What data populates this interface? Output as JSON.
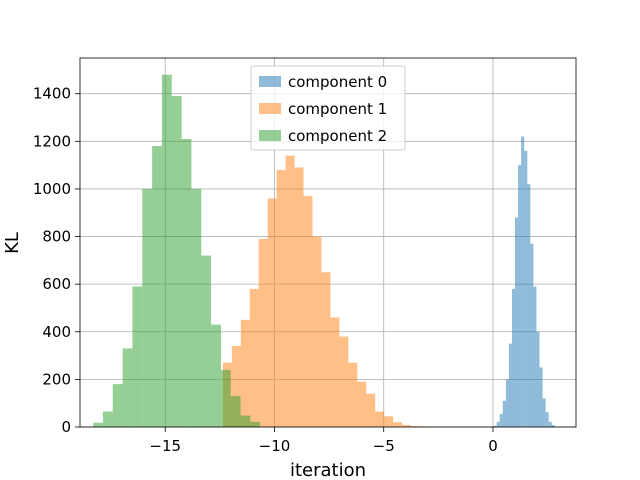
{
  "chart_data": {
    "type": "histogram",
    "xlabel": "iteration",
    "ylabel": "KL",
    "xlim": [
      -18.9,
      3.8
    ],
    "ylim": [
      0,
      1550
    ],
    "xticks": [
      -15,
      -10,
      -5,
      0
    ],
    "xtick_labels": [
      "−15",
      "−10",
      "−5",
      "0"
    ],
    "yticks": [
      0,
      200,
      400,
      600,
      800,
      1000,
      1200,
      1400
    ],
    "ytick_labels": [
      "0",
      "200",
      "400",
      "600",
      "800",
      "1000",
      "1200",
      "1400"
    ],
    "grid": true,
    "legend_position": "upper center",
    "series": [
      {
        "name": "component 0",
        "color": "#1f77b4",
        "opacity": 0.5,
        "bin_edges": [
          -0.11,
          0.03,
          0.17,
          0.31,
          0.45,
          0.59,
          0.73,
          0.87,
          1.01,
          1.15,
          1.29,
          1.43,
          1.57,
          1.71,
          1.85,
          1.99,
          2.13,
          2.27,
          2.41,
          2.55,
          2.69,
          2.83
        ],
        "counts": [
          2,
          5,
          22,
          55,
          110,
          200,
          350,
          580,
          880,
          1100,
          1220,
          1160,
          1020,
          770,
          590,
          400,
          250,
          120,
          62,
          22,
          8
        ]
      },
      {
        "name": "component 1",
        "color": "#ff7f0e",
        "opacity": 0.5,
        "bin_edges": [
          -12.36,
          -11.95,
          -11.54,
          -11.13,
          -10.72,
          -10.31,
          -9.9,
          -9.49,
          -9.08,
          -8.67,
          -8.26,
          -7.85,
          -7.44,
          -7.03,
          -6.62,
          -6.21,
          -5.8,
          -5.39,
          -4.98,
          -4.57,
          -4.16,
          -3.75,
          -3.34,
          -2.93,
          -2.52,
          -2.11,
          -1.7,
          -1.29,
          -0.88
        ],
        "counts": [
          270,
          340,
          450,
          580,
          790,
          960,
          1080,
          1140,
          1090,
          970,
          800,
          650,
          460,
          380,
          270,
          190,
          140,
          65,
          45,
          20,
          8,
          4,
          3,
          2,
          1,
          1,
          1,
          2
        ]
      },
      {
        "name": "component 2",
        "color": "#2ca02c",
        "opacity": 0.5,
        "bin_edges": [
          -18.3,
          -17.85,
          -17.4,
          -16.95,
          -16.5,
          -16.05,
          -15.6,
          -15.15,
          -14.7,
          -14.25,
          -13.8,
          -13.35,
          -12.9,
          -12.45,
          -12.0,
          -11.55,
          -11.1,
          -10.65
        ],
        "counts": [
          18,
          65,
          180,
          330,
          590,
          1000,
          1180,
          1480,
          1390,
          1210,
          1000,
          720,
          430,
          240,
          130,
          48,
          22
        ]
      }
    ]
  }
}
